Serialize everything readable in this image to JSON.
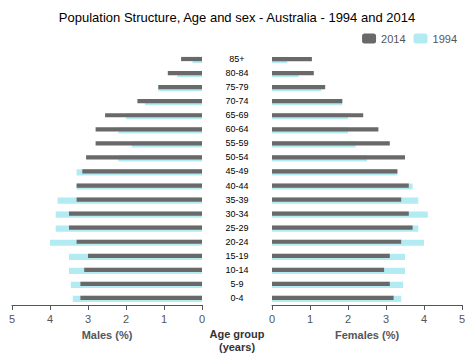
{
  "chart_data": [
    {
      "type": "bar",
      "orientation": "horizontal",
      "title": "Population Structure, Age and sex - Australia - 1994 and 2014",
      "xlabel": "Males (%)",
      "ylabel": "Age group\n(years)",
      "categories": [
        "0-4",
        "5-9",
        "10-14",
        "15-19",
        "20-24",
        "25-29",
        "30-34",
        "35-39",
        "40-44",
        "45-49",
        "50-54",
        "55-59",
        "60-64",
        "65-69",
        "70-74",
        "75-79",
        "80-84",
        "85+"
      ],
      "series": [
        {
          "name": "2014",
          "color": "#696969",
          "values": [
            3.2,
            3.2,
            3.1,
            3.0,
            3.3,
            3.5,
            3.5,
            3.3,
            3.3,
            3.15,
            3.05,
            2.8,
            2.8,
            2.55,
            1.7,
            1.15,
            0.9,
            0.55
          ]
        },
        {
          "name": "1994",
          "color": "#b2ebf2",
          "values": [
            3.4,
            3.45,
            3.5,
            3.5,
            4.0,
            3.85,
            3.85,
            3.8,
            3.3,
            3.3,
            2.2,
            1.85,
            2.2,
            2.0,
            1.5,
            1.15,
            0.65,
            0.25
          ]
        }
      ],
      "xlim": [
        0,
        5
      ],
      "xticks": [
        0,
        1,
        2,
        3,
        4,
        5
      ],
      "grid": false
    },
    {
      "type": "bar",
      "orientation": "horizontal",
      "xlabel": "Females (%)",
      "categories": [
        "0-4",
        "5-9",
        "10-14",
        "15-19",
        "20-24",
        "25-29",
        "30-34",
        "35-39",
        "40-44",
        "45-49",
        "50-54",
        "55-59",
        "60-64",
        "65-69",
        "70-74",
        "75-79",
        "80-84",
        "85+"
      ],
      "series": [
        {
          "name": "2014",
          "color": "#696969",
          "values": [
            3.2,
            3.1,
            2.95,
            3.1,
            3.4,
            3.7,
            3.6,
            3.4,
            3.6,
            3.3,
            3.5,
            3.1,
            2.8,
            2.4,
            1.85,
            1.4,
            1.1,
            1.05
          ]
        },
        {
          "name": "1994",
          "color": "#b2ebf2",
          "values": [
            3.4,
            3.45,
            3.5,
            3.5,
            4.0,
            3.85,
            4.1,
            3.85,
            3.7,
            3.3,
            2.5,
            2.2,
            2.0,
            2.0,
            1.85,
            1.3,
            0.7,
            0.4
          ]
        }
      ],
      "xlim": [
        0,
        5
      ],
      "xticks": [
        0,
        1,
        2,
        3,
        4,
        5
      ],
      "grid": false,
      "legend": "upper right"
    }
  ]
}
